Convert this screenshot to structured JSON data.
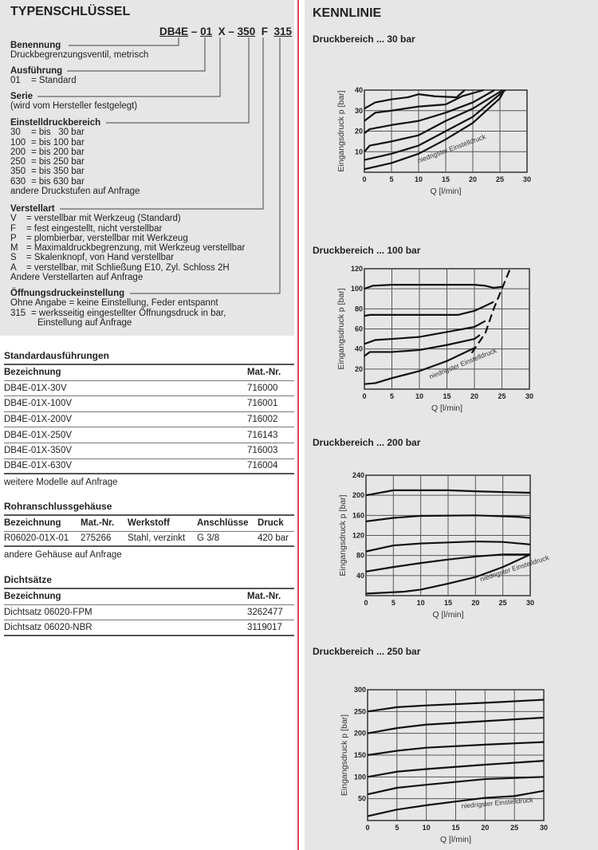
{
  "typenschluessel": {
    "title": "TYPENSCHLÜSSEL",
    "code": {
      "p1": "DB4E",
      "d1": "–",
      "p2": "01",
      "p3": "X",
      "d2": "–",
      "p4": "350",
      "p5": "F",
      "p6": "315"
    },
    "benennung": {
      "heading": "Benennung",
      "lines": [
        "Druckbegrenzungsventil, metrisch"
      ]
    },
    "ausfuehrung": {
      "heading": "Ausführung",
      "items": [
        {
          "k": "01",
          "v": "= Standard"
        }
      ]
    },
    "serie": {
      "heading": "Serie",
      "lines": [
        "(wird vom Hersteller festgelegt)"
      ]
    },
    "einstelldruck": {
      "heading": "Einstelldruckbereich",
      "items": [
        {
          "k": "30",
          "v": "= bis   30 bar"
        },
        {
          "k": "100",
          "v": "= bis 100 bar"
        },
        {
          "k": "200",
          "v": "= bis 200 bar"
        },
        {
          "k": "250",
          "v": "= bis 250 bar"
        },
        {
          "k": "350",
          "v": "= bis 350 bar"
        },
        {
          "k": "630",
          "v": "= bis 630 bar"
        }
      ],
      "note": "andere Druckstufen auf Anfrage"
    },
    "verstellart": {
      "heading": "Verstellart",
      "items": [
        {
          "k": "V",
          "v": "= verstellbar mit Werkzeug (Standard)"
        },
        {
          "k": "F",
          "v": "= fest eingestellt, nicht verstellbar"
        },
        {
          "k": "P",
          "v": "= plombierbar, verstellbar mit Werkzeug"
        },
        {
          "k": "M",
          "v": "= Maximaldruckbegrenzung, mit Werkzeug verstellbar"
        },
        {
          "k": "S",
          "v": "= Skalenknopf, von Hand verstellbar"
        },
        {
          "k": "A",
          "v": "= verstellbar, mit Schließung E10, Zyl. Schloss 2H"
        }
      ],
      "note": "Andere Verstellarten auf Anfrage"
    },
    "oeffnung": {
      "heading": "Öffnungsdruckeinstellung",
      "line1": "Ohne Angabe = keine Einstellung, Feder entspannt",
      "k": "315",
      "v": "= werksseitig eingestellter Öffnungsdruck in bar,",
      "v2": "Einstellung auf Anfrage"
    }
  },
  "standard": {
    "title": "Standardausführungen",
    "headers": [
      "Bezeichnung",
      "Mat.-Nr."
    ],
    "rows": [
      [
        "DB4E-01X-30V",
        "716000"
      ],
      [
        "DB4E-01X-100V",
        "716001"
      ],
      [
        "DB4E-01X-200V",
        "716002"
      ],
      [
        "DB4E-01X-250V",
        "716143"
      ],
      [
        "DB4E-01X-350V",
        "716003"
      ],
      [
        "DB4E-01X-630V",
        "716004"
      ]
    ],
    "note": "weitere Modelle auf Anfrage"
  },
  "gehaeuse": {
    "title": "Rohranschlussgehäuse",
    "headers": [
      "Bezeichnung",
      "Mat.-Nr.",
      "Werkstoff",
      "Anschlüsse",
      "Druck"
    ],
    "rows": [
      [
        "R06020-01X-01",
        "275266",
        "Stahl, verzinkt",
        "G 3/8",
        "420 bar"
      ]
    ],
    "note": "andere Gehäuse auf Anfrage"
  },
  "dicht": {
    "title": "Dichtsätze",
    "headers": [
      "Bezeichnung",
      "Mat.-Nr."
    ],
    "rows": [
      [
        "Dichtsatz 06020-FPM",
        "3262477"
      ],
      [
        "Dichtsatz 06020-NBR",
        "3119017"
      ]
    ]
  },
  "kennlinie": {
    "title": "KENNLINIE"
  },
  "chart_data": [
    {
      "type": "line",
      "title": "Druckbereich ... 30 bar",
      "xlabel": "Q [l/min]",
      "ylabel": "Eingangsdruck p [bar]",
      "xlim": [
        0,
        30
      ],
      "ylim": [
        0,
        40
      ],
      "xticks": [
        0,
        5,
        10,
        15,
        20,
        25,
        30
      ],
      "yticks": [
        10,
        20,
        30,
        40
      ],
      "grid": true,
      "annotation": "niedrigster Einstelldruck",
      "series": [
        {
          "points": [
            [
              0,
              31
            ],
            [
              2,
              34
            ],
            [
              5,
              35.5
            ],
            [
              8,
              36.5
            ],
            [
              10,
              38
            ],
            [
              13,
              37
            ],
            [
              17,
              36.5
            ],
            [
              18.5,
              40
            ]
          ]
        },
        {
          "points": [
            [
              0,
              25
            ],
            [
              2,
              29
            ],
            [
              5,
              30
            ],
            [
              10,
              32
            ],
            [
              15,
              33
            ],
            [
              18,
              37
            ],
            [
              22,
              40
            ]
          ]
        },
        {
          "points": [
            [
              0,
              19
            ],
            [
              1,
              21
            ],
            [
              5,
              23
            ],
            [
              10,
              25
            ],
            [
              15,
              29
            ],
            [
              20,
              34
            ],
            [
              24,
              40
            ]
          ]
        },
        {
          "points": [
            [
              0,
              10
            ],
            [
              1,
              13
            ],
            [
              5,
              15
            ],
            [
              10,
              18
            ],
            [
              15,
              25
            ],
            [
              20,
              31
            ],
            [
              25.5,
              40
            ]
          ]
        },
        {
          "points": [
            [
              0,
              6
            ],
            [
              5,
              9
            ],
            [
              10,
              13
            ],
            [
              15,
              20
            ],
            [
              20,
              27
            ],
            [
              25,
              38
            ],
            [
              26,
              40
            ]
          ]
        },
        {
          "points": [
            [
              0,
              1.5
            ],
            [
              5,
              4.5
            ],
            [
              10,
              9
            ],
            [
              15,
              16
            ],
            [
              20,
              24
            ],
            [
              25,
              36
            ],
            [
              25.8,
              40
            ]
          ]
        }
      ]
    },
    {
      "type": "line",
      "title": "Druckbereich ... 100 bar",
      "xlabel": "Q [l/min]",
      "ylabel": "Eingangsdruck p [bar]",
      "xlim": [
        0,
        30
      ],
      "ylim": [
        0,
        120
      ],
      "xticks": [
        0,
        5,
        10,
        15,
        20,
        25,
        30
      ],
      "yticks": [
        20,
        40,
        60,
        80,
        100,
        120
      ],
      "grid": true,
      "annotation": "niedrigster Einstelldruck",
      "series": [
        {
          "points": [
            [
              0,
              100
            ],
            [
              1.5,
              103
            ],
            [
              5,
              104
            ],
            [
              20,
              104
            ],
            [
              22,
              103
            ],
            [
              23.5,
              101
            ],
            [
              25,
              102
            ]
          ]
        },
        {
          "points": [
            [
              0,
              73
            ],
            [
              1,
              74
            ],
            [
              17,
              74
            ],
            [
              20,
              78
            ],
            [
              22,
              83
            ],
            [
              23.5,
              87
            ]
          ]
        },
        {
          "points": [
            [
              0,
              45
            ],
            [
              2,
              49
            ],
            [
              5,
              50
            ],
            [
              10,
              52
            ],
            [
              15,
              57
            ],
            [
              20,
              62
            ],
            [
              22,
              68
            ]
          ]
        },
        {
          "points": [
            [
              0,
              33
            ],
            [
              1,
              37
            ],
            [
              5,
              37
            ],
            [
              10,
              39
            ],
            [
              15,
              44
            ],
            [
              20,
              50
            ],
            [
              21,
              54
            ]
          ]
        },
        {
          "points": [
            [
              0,
              5
            ],
            [
              2,
              6
            ],
            [
              5,
              11
            ],
            [
              10,
              18
            ],
            [
              15,
              28
            ],
            [
              20,
              41
            ]
          ]
        },
        {
          "dashed": true,
          "points": [
            [
              19.5,
              36
            ],
            [
              22,
              56
            ],
            [
              23.5,
              80
            ],
            [
              25,
              100
            ],
            [
              26.5,
              120
            ]
          ]
        }
      ]
    },
    {
      "type": "line",
      "title": "Druckbereich ... 200 bar",
      "xlabel": "Q [l/min]",
      "ylabel": "Eingangsdruck p [bar]",
      "xlim": [
        0,
        30
      ],
      "ylim": [
        0,
        240
      ],
      "xticks": [
        0,
        5,
        10,
        15,
        20,
        25,
        30
      ],
      "yticks": [
        40,
        80,
        120,
        160,
        200,
        240
      ],
      "grid": true,
      "annotation": "niedrigster Einstelldruck",
      "series": [
        {
          "points": [
            [
              0,
              200
            ],
            [
              5,
              210
            ],
            [
              15,
              210
            ],
            [
              20,
              208
            ],
            [
              30,
              205
            ]
          ]
        },
        {
          "points": [
            [
              0,
              148
            ],
            [
              5,
              155
            ],
            [
              10,
              159
            ],
            [
              20,
              160
            ],
            [
              28,
              157
            ],
            [
              30,
              155
            ]
          ]
        },
        {
          "points": [
            [
              0,
              88
            ],
            [
              5,
              100
            ],
            [
              10,
              104
            ],
            [
              20,
              108
            ],
            [
              25,
              107
            ],
            [
              30,
              102
            ]
          ]
        },
        {
          "points": [
            [
              0,
              48
            ],
            [
              5,
              57
            ],
            [
              10,
              65
            ],
            [
              15,
              72
            ],
            [
              20,
              78
            ],
            [
              25,
              82
            ],
            [
              30,
              82
            ]
          ]
        },
        {
          "points": [
            [
              0,
              4
            ],
            [
              7,
              8
            ],
            [
              10,
              12
            ],
            [
              15,
              24
            ],
            [
              20,
              37
            ],
            [
              25,
              57
            ],
            [
              30,
              82
            ]
          ]
        }
      ]
    },
    {
      "type": "line",
      "title": "Druckbereich ... 250 bar",
      "xlabel": "Q [l/min]",
      "ylabel": "Eingangsdruck p [bar]",
      "xlim": [
        0,
        30
      ],
      "ylim": [
        0,
        300
      ],
      "xticks": [
        0,
        5,
        10,
        15,
        20,
        25,
        30
      ],
      "yticks": [
        50,
        100,
        150,
        200,
        250,
        300
      ],
      "grid": true,
      "annotation": "niedrigster Einstelldruck",
      "series": [
        {
          "points": [
            [
              0,
              250
            ],
            [
              5,
              260
            ],
            [
              10,
              264
            ],
            [
              20,
              270
            ],
            [
              30,
              277
            ]
          ]
        },
        {
          "points": [
            [
              0,
              200
            ],
            [
              5,
              212
            ],
            [
              10,
              220
            ],
            [
              20,
              228
            ],
            [
              30,
              236
            ]
          ]
        },
        {
          "points": [
            [
              0,
              150
            ],
            [
              5,
              160
            ],
            [
              10,
              167
            ],
            [
              20,
              174
            ],
            [
              30,
              180
            ]
          ]
        },
        {
          "points": [
            [
              0,
              100
            ],
            [
              5,
              112
            ],
            [
              10,
              118
            ],
            [
              20,
              128
            ],
            [
              30,
              137
            ]
          ]
        },
        {
          "points": [
            [
              0,
              60
            ],
            [
              5,
              75
            ],
            [
              10,
              82
            ],
            [
              20,
              95
            ],
            [
              30,
              100
            ]
          ]
        },
        {
          "points": [
            [
              0,
              10
            ],
            [
              5,
              25
            ],
            [
              10,
              35
            ],
            [
              20,
              52
            ],
            [
              25,
              56
            ],
            [
              30,
              68
            ]
          ]
        }
      ]
    }
  ]
}
